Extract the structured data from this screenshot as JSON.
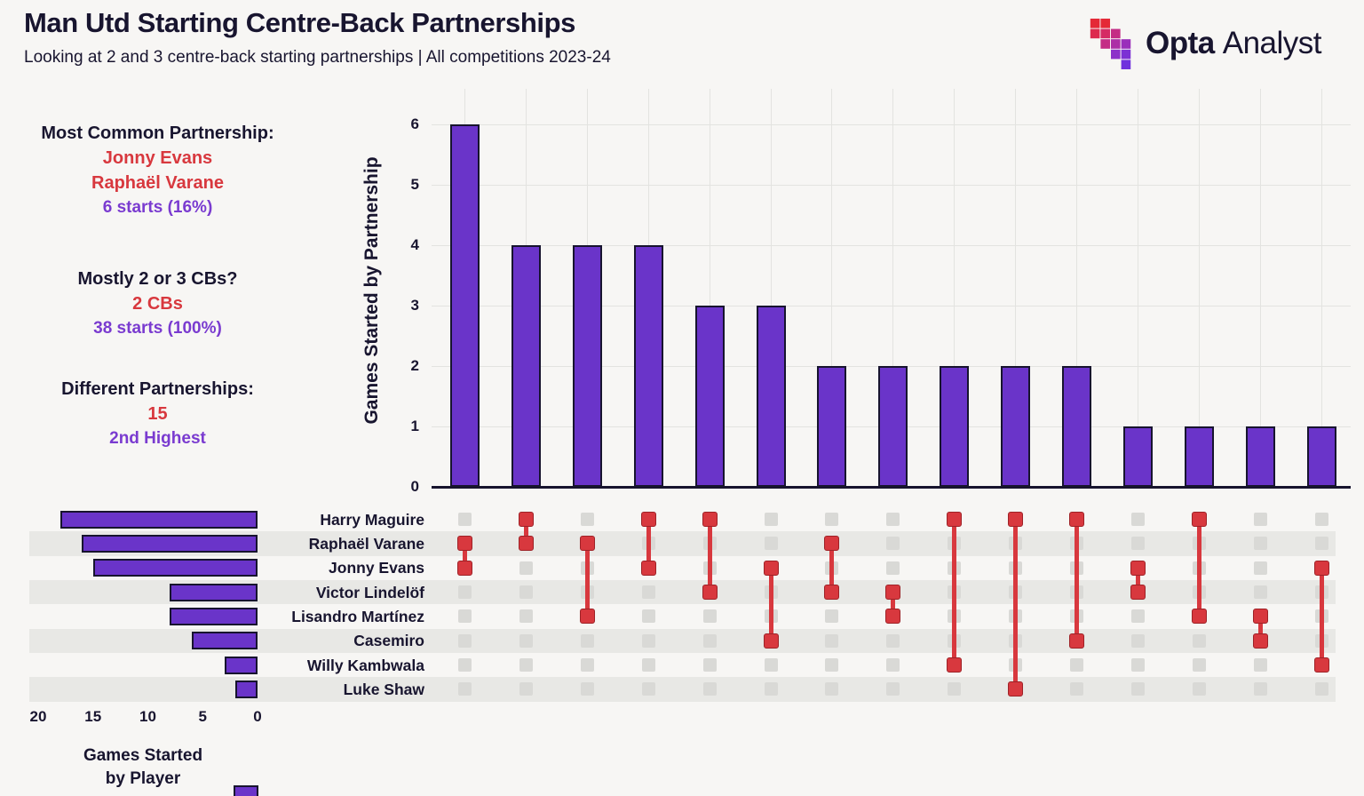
{
  "header": {
    "title": "Man Utd Starting Centre-Back Partnerships",
    "subtitle": "Looking at 2 and 3 centre-back starting partnerships | All competitions 2023-24",
    "logo_opta": "Opta",
    "logo_analyst": "Analyst"
  },
  "stats": {
    "block1": {
      "heading": "Most Common Partnership:",
      "red1": "Jonny Evans",
      "red2": "Raphaël Varane",
      "purple": "6 starts (16%)"
    },
    "block2": {
      "heading": "Mostly 2 or 3 CBs?",
      "red1": "2 CBs",
      "purple": "38 starts (100%)"
    },
    "block3": {
      "heading": "Different Partnerships:",
      "red1": "15",
      "purple": "2nd Highest"
    }
  },
  "chart_data": {
    "type": "upset",
    "title_y_axis": "Games Started by Partnership",
    "yticks": [
      0,
      1,
      2,
      3,
      4,
      5,
      6
    ],
    "ylim": [
      0,
      6
    ],
    "partnerships": [
      {
        "members": [
          "Raphaël Varane",
          "Jonny Evans"
        ],
        "starts": 6
      },
      {
        "members": [
          "Harry Maguire",
          "Raphaël Varane"
        ],
        "starts": 4
      },
      {
        "members": [
          "Raphaël Varane",
          "Lisandro Martínez"
        ],
        "starts": 4
      },
      {
        "members": [
          "Harry Maguire",
          "Jonny Evans"
        ],
        "starts": 4
      },
      {
        "members": [
          "Harry Maguire",
          "Victor Lindelöf"
        ],
        "starts": 3
      },
      {
        "members": [
          "Jonny Evans",
          "Casemiro"
        ],
        "starts": 3
      },
      {
        "members": [
          "Raphaël Varane",
          "Victor Lindelöf"
        ],
        "starts": 2
      },
      {
        "members": [
          "Victor Lindelöf",
          "Lisandro Martínez"
        ],
        "starts": 2
      },
      {
        "members": [
          "Harry Maguire",
          "Willy Kambwala"
        ],
        "starts": 2
      },
      {
        "members": [
          "Harry Maguire",
          "Luke Shaw"
        ],
        "starts": 2
      },
      {
        "members": [
          "Harry Maguire",
          "Casemiro"
        ],
        "starts": 2
      },
      {
        "members": [
          "Jonny Evans",
          "Victor Lindelöf"
        ],
        "starts": 1
      },
      {
        "members": [
          "Harry Maguire",
          "Lisandro Martínez"
        ],
        "starts": 1
      },
      {
        "members": [
          "Lisandro Martínez",
          "Casemiro"
        ],
        "starts": 1
      },
      {
        "members": [
          "Jonny Evans",
          "Willy Kambwala"
        ],
        "starts": 1
      }
    ],
    "players": [
      {
        "name": "Harry Maguire",
        "games": 18
      },
      {
        "name": "Raphaël Varane",
        "games": 16
      },
      {
        "name": "Jonny Evans",
        "games": 15
      },
      {
        "name": "Victor Lindelöf",
        "games": 8
      },
      {
        "name": "Lisandro Martínez",
        "games": 8
      },
      {
        "name": "Casemiro",
        "games": 6
      },
      {
        "name": "Willy Kambwala",
        "games": 3
      },
      {
        "name": "Luke Shaw",
        "games": 2
      }
    ],
    "bottom_axis": {
      "ticks": [
        20,
        15,
        10,
        5,
        0
      ],
      "label_line1": "Games Started",
      "label_line2": "by Player",
      "max": 20
    }
  },
  "colors": {
    "bar_purple": "#6a34c9",
    "bar_border": "#17142e",
    "accent_red": "#d8383e",
    "accent_red_border": "#9e2227",
    "text_navy": "#18152f",
    "text_purple": "#7a3bd0",
    "grid": "#e3e3e0",
    "stripe": "#e8e8e5",
    "matrix_gray": "#d9d9d6",
    "background": "#f7f6f4"
  }
}
